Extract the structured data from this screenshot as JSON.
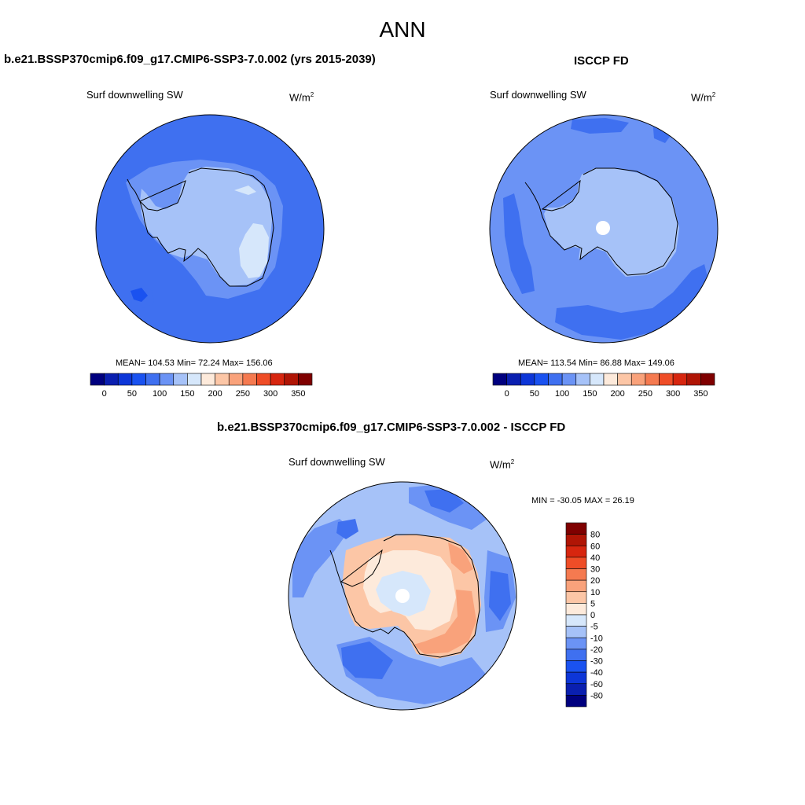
{
  "main_title": "ANN",
  "units": "W/m",
  "units_sup": "2",
  "panels": [
    {
      "title": "b.e21.BSSP370cmip6.f09_g17.CMIP6-SSP3-7.0.002 (yrs 2015-2039)",
      "variable": "Surf downwelling SW",
      "stats": "MEAN= 104.53  Min=  72.24  Max= 156.06"
    },
    {
      "title": "ISCCP FD",
      "variable": "Surf downwelling SW",
      "stats": "MEAN= 113.54  Min=  86.88  Max= 149.06"
    },
    {
      "title": "b.e21.BSSP370cmip6.f09_g17.CMIP6-SSP3-7.0.002 - ISCCP FD",
      "variable": "Surf downwelling SW",
      "stats": "MIN = -30.05 MAX =  26.19"
    }
  ],
  "colorbar_abs": {
    "labels": [
      "0",
      "50",
      "100",
      "150",
      "200",
      "250",
      "300",
      "350"
    ],
    "colors": [
      "#00007f",
      "#0a1fb0",
      "#0d36d8",
      "#1a52f0",
      "#3f70f0",
      "#6b93f5",
      "#a6c2f8",
      "#d6e7fb",
      "#fdeadb",
      "#fcc6a6",
      "#f9a27b",
      "#f57a50",
      "#ef4d27",
      "#d7260f",
      "#b01505",
      "#7f0000"
    ]
  },
  "colorbar_diff": {
    "labels": [
      "80",
      "60",
      "40",
      "30",
      "20",
      "10",
      "5",
      "0",
      "-5",
      "-10",
      "-20",
      "-30",
      "-40",
      "-60",
      "-80"
    ],
    "colors": [
      "#7f0000",
      "#b01505",
      "#d7260f",
      "#ef4d27",
      "#f57a50",
      "#f9a27b",
      "#fcc6a6",
      "#fdeadb",
      "#d6e7fb",
      "#a6c2f8",
      "#6b93f5",
      "#3f70f0",
      "#1a52f0",
      "#0d36d8",
      "#0a1fb0",
      "#00007f"
    ]
  }
}
